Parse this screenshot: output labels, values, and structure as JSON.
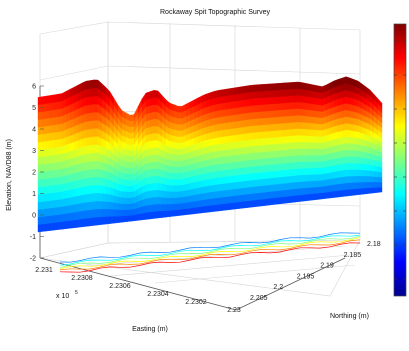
{
  "chart_data": {
    "type": "surface",
    "title": "Rockaway Spit Topographic Survey",
    "zlabel": "Elevation, NAVD88 (m)",
    "xlabel": "Easting (m)",
    "ylabel": "Northing (m)",
    "x_multiplier": "x 10",
    "x_multiplier_exp": "5",
    "z_ticks": [
      "6",
      "5",
      "4",
      "3",
      "2",
      "1",
      "0",
      "-1",
      "-2"
    ],
    "x_ticks": [
      "2.231",
      "2.2308",
      "2.2306",
      "2.2304",
      "2.2302",
      "2.23"
    ],
    "y_ticks": [
      "2.205",
      "2.2",
      "2.195",
      "2.19",
      "2.185",
      "2.18"
    ],
    "colormap": "jet",
    "colorbar_ticks": [
      "",
      "",
      "",
      "",
      "",
      "",
      "",
      ""
    ],
    "zlim": [
      -2,
      6
    ],
    "grid": true,
    "legend": "none",
    "ridge_profile_z": [
      5.1,
      5.2,
      5.3,
      5.6,
      5.9,
      6.0,
      5.5,
      4.6,
      4.3,
      5.4,
      5.6,
      5.0,
      4.8,
      5.1,
      5.4,
      5.6,
      5.7,
      5.8,
      5.9,
      5.95,
      6.0,
      6.05,
      6.1,
      6.0,
      5.9,
      6.2,
      6.4,
      6.2,
      5.8,
      5.2
    ],
    "base_z": -0.6,
    "contour_levels": [
      0,
      1,
      2,
      3,
      4,
      5
    ]
  }
}
